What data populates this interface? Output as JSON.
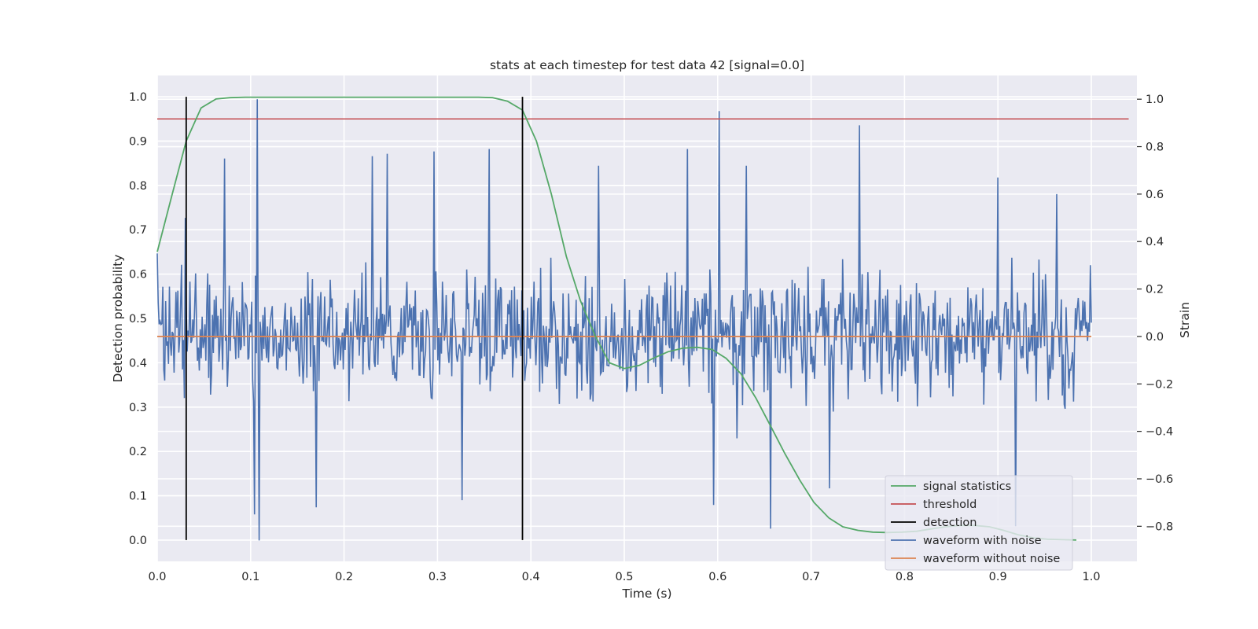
{
  "chart_data": {
    "type": "line",
    "title": "stats at each timestep for test data 42 [signal=0.0]",
    "xlabel": "Time (s)",
    "ylabel": "Detection probability",
    "y2label": "Strain",
    "xlim": [
      0.0,
      1.05
    ],
    "ylim": [
      -0.048,
      1.048
    ],
    "y2lim": [
      -0.948,
      1.1
    ],
    "xticks": [
      "0.0",
      "0.1",
      "0.2",
      "0.3",
      "0.4",
      "0.5",
      "0.6",
      "0.7",
      "0.8",
      "0.9",
      "1.0"
    ],
    "yticks": [
      "0.0",
      "0.1",
      "0.2",
      "0.3",
      "0.4",
      "0.5",
      "0.6",
      "0.7",
      "0.8",
      "0.9",
      "1.0"
    ],
    "y2ticks": [
      "−0.8",
      "−0.6",
      "−0.4",
      "−0.2",
      "0.0",
      "0.2",
      "0.4",
      "0.6",
      "0.8",
      "1.0"
    ],
    "grid": true,
    "legend_position": "lower-right",
    "colors": {
      "signal_statistics": "#55a868",
      "threshold": "#c44e52",
      "detection": "#000000",
      "waveform_with_noise": "#4c72b0",
      "waveform_without_noise": "#dd8452",
      "background": "#eaeaf2",
      "grid": "#ffffff"
    },
    "legend": [
      "signal statistics",
      "threshold",
      "detection",
      "waveform with noise",
      "waveform without noise"
    ],
    "series": [
      {
        "name": "signal statistics",
        "axis": "left",
        "x": [
          0.0,
          0.016,
          0.031,
          0.047,
          0.063,
          0.078,
          0.094,
          0.109,
          0.125,
          0.141,
          0.156,
          0.172,
          0.188,
          0.203,
          0.219,
          0.234,
          0.25,
          0.266,
          0.281,
          0.297,
          0.313,
          0.328,
          0.344,
          0.359,
          0.375,
          0.391,
          0.406,
          0.422,
          0.438,
          0.453,
          0.469,
          0.484,
          0.5,
          0.516,
          0.531,
          0.547,
          0.563,
          0.578,
          0.594,
          0.609,
          0.625,
          0.641,
          0.656,
          0.672,
          0.688,
          0.703,
          0.719,
          0.734,
          0.75,
          0.766,
          0.781,
          0.797,
          0.813,
          0.828,
          0.844,
          0.859,
          0.875,
          0.891,
          0.906,
          0.922,
          0.938,
          0.953,
          0.969,
          0.984
        ],
        "y": [
          0.65,
          0.78,
          0.9,
          0.975,
          0.995,
          0.998,
          0.999,
          0.999,
          0.999,
          0.999,
          0.999,
          0.999,
          0.999,
          0.999,
          0.999,
          0.999,
          0.999,
          0.999,
          0.999,
          0.999,
          0.999,
          0.999,
          0.999,
          0.998,
          0.99,
          0.97,
          0.9,
          0.78,
          0.64,
          0.54,
          0.46,
          0.4,
          0.387,
          0.394,
          0.41,
          0.425,
          0.433,
          0.435,
          0.43,
          0.41,
          0.375,
          0.32,
          0.26,
          0.195,
          0.135,
          0.085,
          0.05,
          0.03,
          0.022,
          0.018,
          0.017,
          0.018,
          0.02,
          0.025,
          0.03,
          0.033,
          0.033,
          0.03,
          0.022,
          0.012,
          0.005,
          0.002,
          0.001,
          0.0
        ]
      },
      {
        "name": "threshold",
        "axis": "left",
        "x": [
          0.0,
          1.04
        ],
        "y": [
          0.95,
          0.95
        ]
      },
      {
        "name": "detection",
        "axis": "left",
        "segments": [
          {
            "x": 0.031,
            "y": [
              0.0,
              1.0
            ]
          },
          {
            "x": 0.391,
            "y": [
              0.0,
              1.0
            ]
          }
        ]
      },
      {
        "name": "waveform with noise",
        "axis": "right",
        "x_range": [
          0.0,
          1.0
        ],
        "n_points": 1000,
        "spikes": [
          {
            "x": 0.0,
            "y": 0.35
          },
          {
            "x": 0.03,
            "y": 0.5
          },
          {
            "x": 0.072,
            "y": 0.75
          },
          {
            "x": 0.104,
            "y": -0.75
          },
          {
            "x": 0.107,
            "y": 1.0
          },
          {
            "x": 0.109,
            "y": -0.86
          },
          {
            "x": 0.17,
            "y": -0.72
          },
          {
            "x": 0.23,
            "y": 0.76
          },
          {
            "x": 0.246,
            "y": 0.77
          },
          {
            "x": 0.296,
            "y": 0.78
          },
          {
            "x": 0.326,
            "y": -0.69
          },
          {
            "x": 0.355,
            "y": 0.79
          },
          {
            "x": 0.472,
            "y": 0.72
          },
          {
            "x": 0.568,
            "y": 0.79
          },
          {
            "x": 0.596,
            "y": -0.71
          },
          {
            "x": 0.602,
            "y": 0.95
          },
          {
            "x": 0.631,
            "y": 0.72
          },
          {
            "x": 0.657,
            "y": -0.81
          },
          {
            "x": 0.72,
            "y": -0.64
          },
          {
            "x": 0.752,
            "y": 0.89
          },
          {
            "x": 0.9,
            "y": 0.67
          },
          {
            "x": 0.919,
            "y": -0.8
          },
          {
            "x": 0.963,
            "y": 0.6
          },
          {
            "x": 0.998,
            "y": 0.02
          }
        ]
      },
      {
        "name": "waveform without noise",
        "axis": "right",
        "x": [
          0.0,
          1.0
        ],
        "y": [
          0.0,
          0.0
        ]
      }
    ]
  }
}
